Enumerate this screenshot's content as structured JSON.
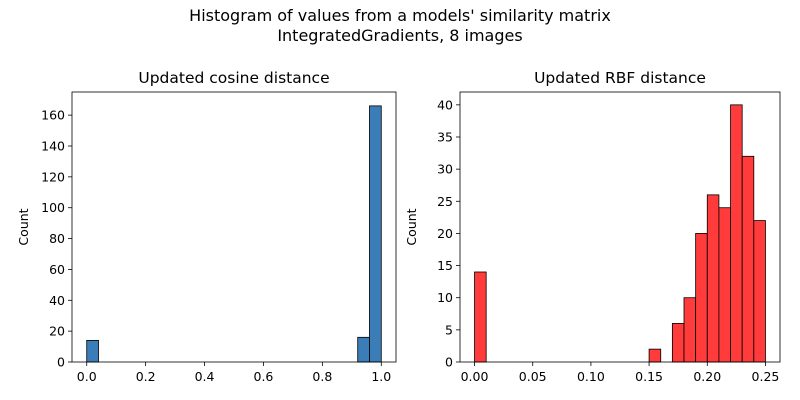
{
  "figure": {
    "title_line1": "Histogram of values from a models' similarity matrix",
    "title_line2": "IntegratedGradients, 8 images"
  },
  "chart_data": [
    {
      "type": "bar",
      "subtype": "histogram",
      "title": "Updated cosine distance",
      "xlabel": "",
      "ylabel": "Count",
      "xlim": [
        -0.05,
        1.05
      ],
      "ylim": [
        0,
        175
      ],
      "xticks": [
        "0.0",
        "0.2",
        "0.4",
        "0.6",
        "0.8",
        "1.0"
      ],
      "xtick_values": [
        0.0,
        0.2,
        0.4,
        0.6,
        0.8,
        1.0
      ],
      "yticks": [
        "0",
        "20",
        "40",
        "60",
        "80",
        "100",
        "120",
        "140",
        "160"
      ],
      "ytick_values": [
        0,
        20,
        40,
        60,
        80,
        100,
        120,
        140,
        160
      ],
      "color": "#3b7db8",
      "grid": false,
      "bins": [
        {
          "x0": 0.0,
          "x1": 0.04,
          "count": 14
        },
        {
          "x0": 0.92,
          "x1": 0.96,
          "count": 16
        },
        {
          "x0": 0.96,
          "x1": 1.0,
          "count": 166
        }
      ]
    },
    {
      "type": "bar",
      "subtype": "histogram",
      "title": "Updated RBF distance",
      "xlabel": "",
      "ylabel": "Count",
      "xlim": [
        -0.0125,
        0.2625
      ],
      "ylim": [
        0,
        42
      ],
      "xticks": [
        "0.00",
        "0.05",
        "0.10",
        "0.15",
        "0.20",
        "0.25"
      ],
      "xtick_values": [
        0.0,
        0.05,
        0.1,
        0.15,
        0.2,
        0.25
      ],
      "yticks": [
        "0",
        "5",
        "10",
        "15",
        "20",
        "25",
        "30",
        "35",
        "40"
      ],
      "ytick_values": [
        0,
        5,
        10,
        15,
        20,
        25,
        30,
        35,
        40
      ],
      "color": "#ff3b3b",
      "grid": false,
      "bins": [
        {
          "x0": 0.0,
          "x1": 0.01,
          "count": 14
        },
        {
          "x0": 0.15,
          "x1": 0.16,
          "count": 2
        },
        {
          "x0": 0.17,
          "x1": 0.18,
          "count": 6
        },
        {
          "x0": 0.18,
          "x1": 0.19,
          "count": 10
        },
        {
          "x0": 0.19,
          "x1": 0.2,
          "count": 20
        },
        {
          "x0": 0.2,
          "x1": 0.21,
          "count": 26
        },
        {
          "x0": 0.21,
          "x1": 0.22,
          "count": 24
        },
        {
          "x0": 0.22,
          "x1": 0.23,
          "count": 40
        },
        {
          "x0": 0.23,
          "x1": 0.24,
          "count": 32
        },
        {
          "x0": 0.24,
          "x1": 0.25,
          "count": 22
        }
      ]
    }
  ]
}
